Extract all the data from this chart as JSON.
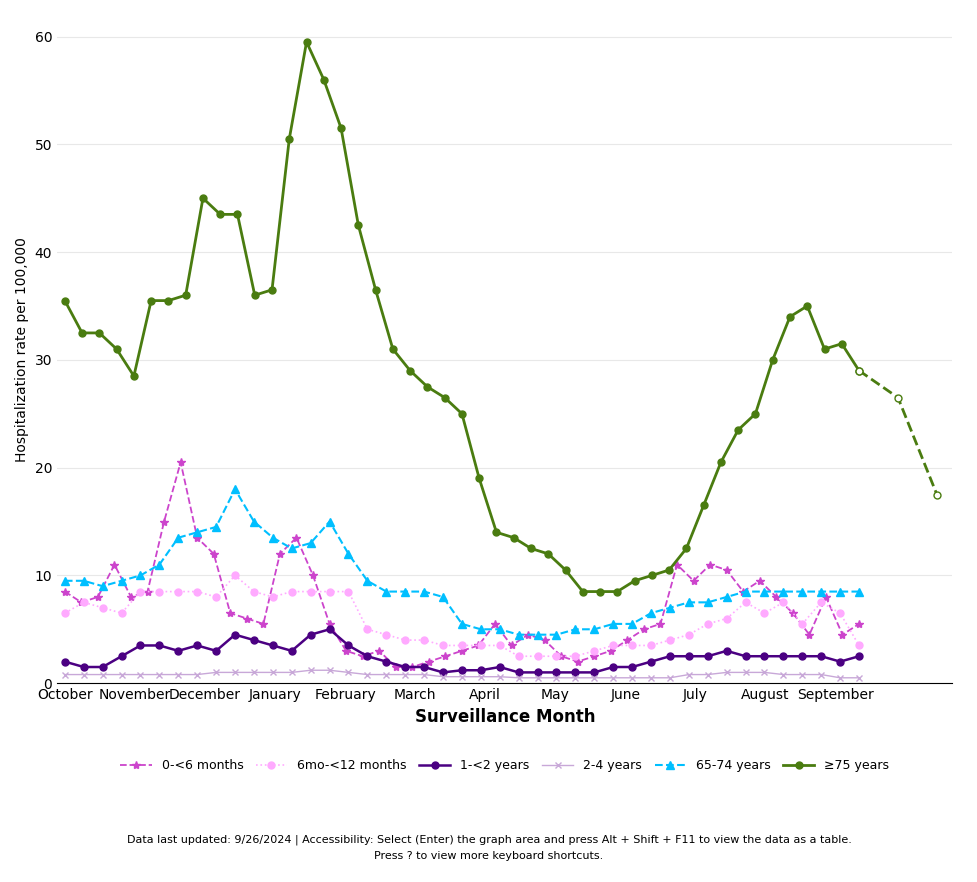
{
  "xlabel": "Surveillance Month",
  "ylabel": "Hospitalization rate per 100,000",
  "ylim": [
    0,
    62
  ],
  "yticks": [
    0,
    10,
    20,
    30,
    40,
    50,
    60
  ],
  "x_labels": [
    "October",
    "November",
    "December",
    "January",
    "February",
    "March",
    "April",
    "May",
    "June",
    "July",
    "August",
    "September"
  ],
  "background_color": "#ffffff",
  "grid_color": "#e8e8e8",
  "series": {
    "0_6mo": {
      "label": "0-<6 months",
      "color": "#cc44cc",
      "linestyle": "--",
      "marker": "*",
      "markersize": 6,
      "linewidth": 1.3,
      "data": [
        8.5,
        7.5,
        8.0,
        11.0,
        8.0,
        8.5,
        15.0,
        20.5,
        13.5,
        12.0,
        6.5,
        6.0,
        5.5,
        12.0,
        13.5,
        10.0,
        5.5,
        3.0,
        2.5,
        3.0,
        1.5,
        1.5,
        2.0,
        2.5,
        3.0,
        3.5,
        5.5,
        3.5,
        4.5,
        4.0,
        2.5,
        2.0,
        2.5,
        3.0,
        4.0,
        5.0,
        5.5,
        11.0,
        9.5,
        11.0,
        10.5,
        8.5,
        9.5,
        8.0,
        6.5,
        4.5,
        8.0,
        4.5,
        5.5
      ]
    },
    "6mo_12mo": {
      "label": "6mo-<12 months",
      "color": "#ffaaff",
      "linestyle": ":",
      "marker": "o",
      "markersize": 5,
      "linewidth": 1.2,
      "data": [
        6.5,
        7.5,
        7.0,
        6.5,
        8.5,
        8.5,
        8.5,
        8.5,
        8.0,
        10.0,
        8.5,
        8.0,
        8.5,
        8.5,
        8.5,
        8.5,
        5.0,
        4.5,
        4.0,
        4.0,
        3.5,
        3.5,
        3.5,
        3.5,
        2.5,
        2.5,
        2.5,
        2.5,
        3.0,
        3.5,
        3.5,
        3.5,
        4.0,
        4.5,
        5.5,
        6.0,
        7.5,
        6.5,
        7.5,
        5.5,
        7.5,
        6.5,
        3.5
      ]
    },
    "1_2yr": {
      "label": "1-<2 years",
      "color": "#4b0082",
      "linestyle": "-",
      "marker": "o",
      "markersize": 5,
      "linewidth": 1.8,
      "data": [
        2.0,
        1.5,
        1.5,
        2.5,
        3.5,
        3.5,
        3.0,
        3.5,
        3.0,
        4.5,
        4.0,
        3.5,
        3.0,
        4.5,
        5.0,
        3.5,
        2.5,
        2.0,
        1.5,
        1.5,
        1.0,
        1.2,
        1.2,
        1.5,
        1.0,
        1.0,
        1.0,
        1.0,
        1.0,
        1.5,
        1.5,
        2.0,
        2.5,
        2.5,
        2.5,
        3.0,
        2.5,
        2.5,
        2.5,
        2.5,
        2.5,
        2.0,
        2.5
      ]
    },
    "2_4yr": {
      "label": "2-4 years",
      "color": "#c8a8d8",
      "linestyle": "-",
      "marker": "x",
      "markersize": 5,
      "linewidth": 1.0,
      "data": [
        0.8,
        0.8,
        0.8,
        0.8,
        0.8,
        0.8,
        0.8,
        0.8,
        1.0,
        1.0,
        1.0,
        1.0,
        1.0,
        1.2,
        1.2,
        1.0,
        0.8,
        0.8,
        0.8,
        0.8,
        0.6,
        0.6,
        0.6,
        0.6,
        0.5,
        0.5,
        0.5,
        0.5,
        0.5,
        0.5,
        0.5,
        0.5,
        0.5,
        0.8,
        0.8,
        1.0,
        1.0,
        1.0,
        0.8,
        0.8,
        0.8,
        0.5,
        0.5
      ]
    },
    "65_74yr": {
      "label": "65-74 years",
      "color": "#00bfff",
      "linestyle": "--",
      "marker": "^",
      "markersize": 6,
      "linewidth": 1.5,
      "data": [
        9.5,
        9.5,
        9.0,
        9.5,
        10.0,
        11.0,
        13.5,
        14.0,
        14.5,
        18.0,
        15.0,
        13.5,
        12.5,
        13.0,
        15.0,
        12.0,
        9.5,
        8.5,
        8.5,
        8.5,
        8.0,
        5.5,
        5.0,
        5.0,
        4.5,
        4.5,
        4.5,
        5.0,
        5.0,
        5.5,
        5.5,
        6.5,
        7.0,
        7.5,
        7.5,
        8.0,
        8.5,
        8.5,
        8.5,
        8.5,
        8.5,
        8.5,
        8.5
      ]
    },
    "75plus_solid": {
      "label": "≥75 years",
      "color": "#4a7c10",
      "data": [
        35.5,
        32.5,
        32.5,
        31.0,
        28.5,
        35.5,
        35.5,
        36.0,
        45.0,
        43.5,
        43.5,
        36.0,
        36.5,
        50.5,
        59.5,
        56.0,
        51.5,
        42.5,
        36.5,
        31.0,
        29.0,
        27.5,
        26.5,
        25.0,
        19.0,
        14.0,
        13.5,
        12.5,
        12.0,
        10.5,
        8.5,
        8.5,
        8.5,
        9.5,
        10.0,
        10.5,
        12.5,
        16.5,
        20.5,
        23.5,
        25.0,
        30.0,
        34.0,
        35.0,
        31.0,
        31.5,
        29.0
      ]
    },
    "75plus_dashed": {
      "color": "#4a7c10",
      "data": [
        29.0,
        26.5,
        17.5
      ]
    }
  }
}
